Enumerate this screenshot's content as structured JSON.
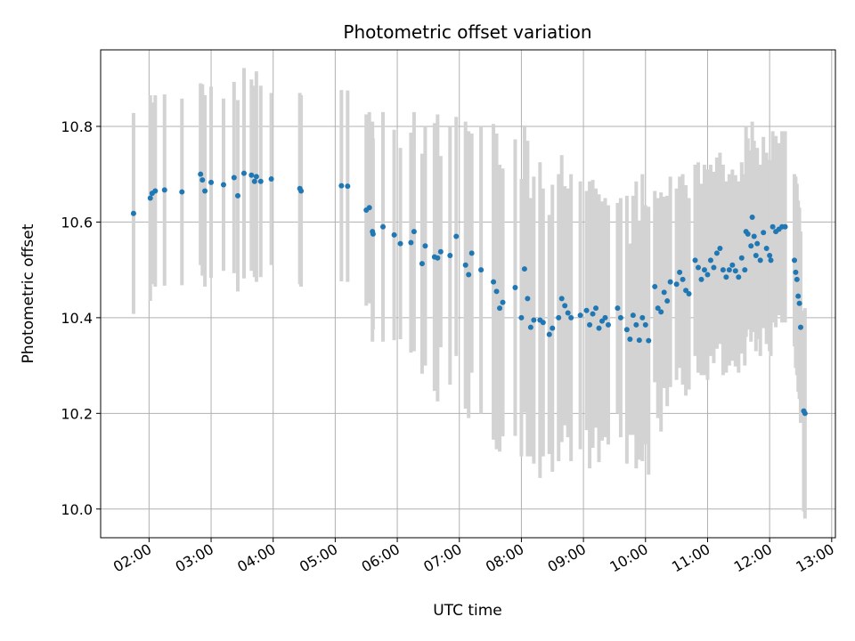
{
  "chart_data": {
    "type": "scatter",
    "title": "Photometric offset variation",
    "xlabel": "UTC time",
    "ylabel": "Photometric offset",
    "x_unit": "hours UTC",
    "xlim": [
      1.22,
      13.06
    ],
    "ylim": [
      9.94,
      10.96
    ],
    "x_ticks": [
      {
        "value": 2,
        "label": "02:00"
      },
      {
        "value": 3,
        "label": "03:00"
      },
      {
        "value": 4,
        "label": "04:00"
      },
      {
        "value": 5,
        "label": "05:00"
      },
      {
        "value": 6,
        "label": "06:00"
      },
      {
        "value": 7,
        "label": "07:00"
      },
      {
        "value": 8,
        "label": "08:00"
      },
      {
        "value": 9,
        "label": "09:00"
      },
      {
        "value": 10,
        "label": "10:00"
      },
      {
        "value": 11,
        "label": "11:00"
      },
      {
        "value": 12,
        "label": "12:00"
      },
      {
        "value": 13,
        "label": "13:00"
      }
    ],
    "y_ticks": [
      {
        "value": 10.0,
        "label": "10.0"
      },
      {
        "value": 10.2,
        "label": "10.2"
      },
      {
        "value": 10.4,
        "label": "10.4"
      },
      {
        "value": 10.6,
        "label": "10.6"
      },
      {
        "value": 10.8,
        "label": "10.8"
      }
    ],
    "grid": true,
    "colors": {
      "marker": "#1f77b4",
      "errorbar": "#d3d3d3",
      "grid": "#b0b0b0"
    },
    "points": [
      [
        1.75,
        10.618,
        0.21
      ],
      [
        2.02,
        10.65,
        0.215
      ],
      [
        2.05,
        10.66,
        0.19
      ],
      [
        2.1,
        10.665,
        0.2
      ],
      [
        2.25,
        10.667,
        0.2
      ],
      [
        2.53,
        10.663,
        0.195
      ],
      [
        2.83,
        10.7,
        0.19
      ],
      [
        2.86,
        10.688,
        0.2
      ],
      [
        2.9,
        10.665,
        0.2
      ],
      [
        3.0,
        10.683,
        0.2
      ],
      [
        3.2,
        10.678,
        0.18
      ],
      [
        3.37,
        10.693,
        0.2
      ],
      [
        3.43,
        10.655,
        0.2
      ],
      [
        3.53,
        10.702,
        0.22
      ],
      [
        3.65,
        10.698,
        0.2
      ],
      [
        3.7,
        10.685,
        0.2
      ],
      [
        3.73,
        10.695,
        0.22
      ],
      [
        3.8,
        10.685,
        0.2
      ],
      [
        3.97,
        10.69,
        0.18
      ],
      [
        4.43,
        10.67,
        0.2
      ],
      [
        4.45,
        10.665,
        0.2
      ],
      [
        5.1,
        10.676,
        0.2
      ],
      [
        5.2,
        10.675,
        0.2
      ],
      [
        5.5,
        10.625,
        0.2
      ],
      [
        5.55,
        10.63,
        0.2
      ],
      [
        5.6,
        10.58,
        0.23
      ],
      [
        5.61,
        10.575,
        0.2
      ],
      [
        5.77,
        10.59,
        0.24
      ],
      [
        5.95,
        10.573,
        0.22
      ],
      [
        6.05,
        10.555,
        0.2
      ],
      [
        6.22,
        10.557,
        0.23
      ],
      [
        6.27,
        10.58,
        0.25
      ],
      [
        6.4,
        10.513,
        0.23
      ],
      [
        6.45,
        10.55,
        0.25
      ],
      [
        6.6,
        10.527,
        0.28
      ],
      [
        6.65,
        10.525,
        0.3
      ],
      [
        6.7,
        10.538,
        0.2
      ],
      [
        6.85,
        10.53,
        0.27
      ],
      [
        6.95,
        10.57,
        0.25
      ],
      [
        7.1,
        10.51,
        0.3
      ],
      [
        7.15,
        10.49,
        0.3
      ],
      [
        7.2,
        10.535,
        0.25
      ],
      [
        7.35,
        10.5,
        0.3
      ],
      [
        7.55,
        10.475,
        0.33
      ],
      [
        7.6,
        10.455,
        0.33
      ],
      [
        7.65,
        10.42,
        0.3
      ],
      [
        7.7,
        10.432,
        0.28
      ],
      [
        7.9,
        10.463,
        0.31
      ],
      [
        8.0,
        10.4,
        0.29
      ],
      [
        8.05,
        10.502,
        0.3
      ],
      [
        8.1,
        10.44,
        0.33
      ],
      [
        8.15,
        10.38,
        0.27
      ],
      [
        8.2,
        10.395,
        0.3
      ],
      [
        8.3,
        10.395,
        0.33
      ],
      [
        8.35,
        10.39,
        0.28
      ],
      [
        8.45,
        10.365,
        0.25
      ],
      [
        8.5,
        10.378,
        0.3
      ],
      [
        8.6,
        10.4,
        0.3
      ],
      [
        8.65,
        10.44,
        0.3
      ],
      [
        8.7,
        10.425,
        0.25
      ],
      [
        8.75,
        10.41,
        0.26
      ],
      [
        8.8,
        10.4,
        0.3
      ],
      [
        8.95,
        10.405,
        0.28
      ],
      [
        9.05,
        10.415,
        0.25
      ],
      [
        9.1,
        10.385,
        0.3
      ],
      [
        9.15,
        10.408,
        0.28
      ],
      [
        9.2,
        10.42,
        0.25
      ],
      [
        9.25,
        10.378,
        0.28
      ],
      [
        9.3,
        10.393,
        0.25
      ],
      [
        9.35,
        10.4,
        0.25
      ],
      [
        9.4,
        10.385,
        0.25
      ],
      [
        9.55,
        10.42,
        0.22
      ],
      [
        9.6,
        10.4,
        0.25
      ],
      [
        9.7,
        10.375,
        0.28
      ],
      [
        9.75,
        10.355,
        0.2
      ],
      [
        9.8,
        10.405,
        0.25
      ],
      [
        9.85,
        10.385,
        0.3
      ],
      [
        9.9,
        10.353,
        0.25
      ],
      [
        9.95,
        10.4,
        0.3
      ],
      [
        10.0,
        10.385,
        0.25
      ],
      [
        10.05,
        10.352,
        0.28
      ],
      [
        10.15,
        10.465,
        0.2
      ],
      [
        10.2,
        10.42,
        0.23
      ],
      [
        10.25,
        10.412,
        0.25
      ],
      [
        10.3,
        10.453,
        0.2
      ],
      [
        10.35,
        10.435,
        0.22
      ],
      [
        10.4,
        10.475,
        0.22
      ],
      [
        10.5,
        10.47,
        0.2
      ],
      [
        10.55,
        10.495,
        0.2
      ],
      [
        10.6,
        10.48,
        0.22
      ],
      [
        10.65,
        10.457,
        0.22
      ],
      [
        10.7,
        10.45,
        0.2
      ],
      [
        10.8,
        10.52,
        0.2
      ],
      [
        10.85,
        10.505,
        0.22
      ],
      [
        10.9,
        10.48,
        0.2
      ],
      [
        10.95,
        10.5,
        0.22
      ],
      [
        11.0,
        10.49,
        0.22
      ],
      [
        11.05,
        10.52,
        0.2
      ],
      [
        11.1,
        10.505,
        0.2
      ],
      [
        11.15,
        10.535,
        0.2
      ],
      [
        11.2,
        10.545,
        0.2
      ],
      [
        11.25,
        10.5,
        0.22
      ],
      [
        11.3,
        10.485,
        0.2
      ],
      [
        11.35,
        10.5,
        0.2
      ],
      [
        11.4,
        10.51,
        0.2
      ],
      [
        11.45,
        10.498,
        0.2
      ],
      [
        11.5,
        10.485,
        0.2
      ],
      [
        11.55,
        10.525,
        0.2
      ],
      [
        11.6,
        10.5,
        0.2
      ],
      [
        11.62,
        10.58,
        0.22
      ],
      [
        11.65,
        10.575,
        0.2
      ],
      [
        11.7,
        10.55,
        0.2
      ],
      [
        11.72,
        10.61,
        0.2
      ],
      [
        11.75,
        10.57,
        0.2
      ],
      [
        11.78,
        10.53,
        0.2
      ],
      [
        11.8,
        10.555,
        0.2
      ],
      [
        11.85,
        10.52,
        0.2
      ],
      [
        11.9,
        10.578,
        0.2
      ],
      [
        11.95,
        10.545,
        0.2
      ],
      [
        12.0,
        10.53,
        0.2
      ],
      [
        12.02,
        10.52,
        0.2
      ],
      [
        12.05,
        10.59,
        0.2
      ],
      [
        12.1,
        10.58,
        0.2
      ],
      [
        12.15,
        10.585,
        0.18
      ],
      [
        12.2,
        10.59,
        0.2
      ],
      [
        12.25,
        10.59,
        0.2
      ],
      [
        12.4,
        10.52,
        0.18
      ],
      [
        12.42,
        10.495,
        0.2
      ],
      [
        12.44,
        10.48,
        0.2
      ],
      [
        12.46,
        10.445,
        0.2
      ],
      [
        12.48,
        10.43,
        0.2
      ],
      [
        12.5,
        10.38,
        0.2
      ],
      [
        12.55,
        10.205,
        0.21
      ],
      [
        12.57,
        10.2,
        0.22
      ]
    ]
  }
}
